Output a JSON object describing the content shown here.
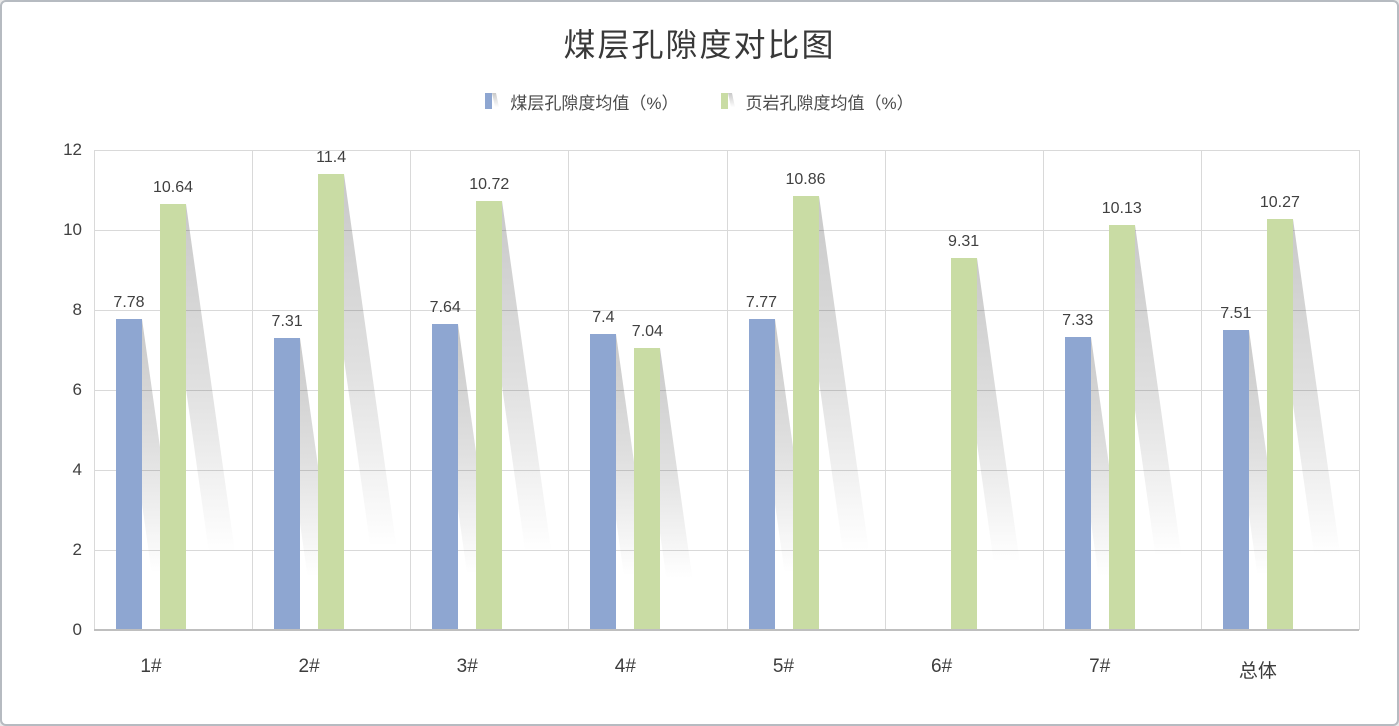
{
  "chart_data": {
    "type": "bar",
    "title": "煤层孔隙度对比图",
    "categories": [
      "1#",
      "2#",
      "3#",
      "4#",
      "5#",
      "6#",
      "7#",
      "总体"
    ],
    "series": [
      {
        "name": "煤层孔隙度均值（%）",
        "color": "#8EA6D1",
        "values": [
          7.78,
          7.31,
          7.64,
          7.4,
          7.77,
          null,
          7.33,
          7.51
        ]
      },
      {
        "name": "页岩孔隙度均值（%）",
        "color": "#C9DCA4",
        "values": [
          10.64,
          11.4,
          10.72,
          7.04,
          10.86,
          9.31,
          10.13,
          10.27
        ]
      }
    ],
    "data_labels": true,
    "y_ticks": [
      0,
      2,
      4,
      6,
      8,
      10,
      12
    ],
    "ylim": [
      0,
      12
    ],
    "grid": true,
    "legend_position": "top",
    "colors": {
      "grid": "#D9D9D9",
      "axis_line": "#BFBFBF",
      "text": "#404040",
      "title_text": "#383838",
      "border": "#B6BBC1",
      "background": "#FFFFFF"
    }
  }
}
